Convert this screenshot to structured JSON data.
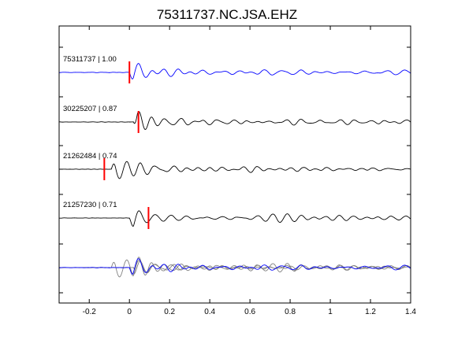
{
  "chart_data": {
    "type": "line",
    "title": "75311737.NC.JSA.EHZ",
    "xlabel": "",
    "ylabel": "",
    "xlim": [
      -0.35,
      1.4
    ],
    "x_ticks": [
      -0.2,
      0,
      0.2,
      0.4,
      0.6,
      0.8,
      1,
      1.2,
      1.4
    ],
    "x_tick_labels": [
      "-0.2",
      "0",
      "0.2",
      "0.4",
      "0.6",
      "0.8",
      "1",
      "1.2",
      "1.4"
    ],
    "grid": false,
    "line_colors": {
      "reference": "#0000ff",
      "other": "#000000",
      "overlay": "#808080",
      "pick": "#ff0000"
    },
    "traces": [
      {
        "label": "75311737 | 1.00",
        "event_id": "75311737",
        "correlation": 1.0,
        "pick_time": 0.0,
        "color": "#0000ff"
      },
      {
        "label": "30225207 | 0.87",
        "event_id": "30225207",
        "correlation": 0.87,
        "pick_time": 0.045,
        "color": "#000000"
      },
      {
        "label": "21262484 | 0.74",
        "event_id": "21262484",
        "correlation": 0.74,
        "pick_time": -0.125,
        "color": "#000000"
      },
      {
        "label": "21257230 | 0.71",
        "event_id": "21257230",
        "correlation": 0.71,
        "pick_time": 0.095,
        "color": "#000000"
      }
    ],
    "overlay_row": {
      "description_hidden": true,
      "layers": [
        "other traces (gray)",
        "reference (blue)"
      ]
    }
  }
}
